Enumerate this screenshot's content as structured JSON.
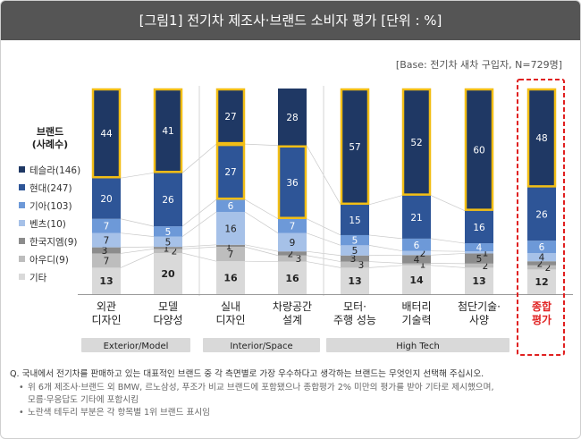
{
  "title": "[그림1] 전기차 제조사·브랜드 소비자 평가 [단위 : %]",
  "base_note": "[Base: 전기차 새차 구입자, N=729명]",
  "legend_title": [
    "브랜드",
    "(사례수)"
  ],
  "colors": {
    "tesla": "#1f3864",
    "hyundai": "#2e5597",
    "kia": "#6d99d8",
    "benz": "#a6c1e8",
    "gm": "#8c8c8c",
    "audi": "#bdbdbd",
    "other": "#d9d9d9",
    "highlight": "#f2be15",
    "overall_box": "#e02020"
  },
  "chart_data": {
    "type": "bar",
    "stacked": true,
    "unit": "%",
    "categories": [
      "외관\n디자인",
      "모델\n다양성",
      "실내\n디자인",
      "차량공간\n설계",
      "모터·\n주행 성능",
      "배터리\n기술력",
      "첨단기술·\n사양",
      "종합\n평가"
    ],
    "category_groups": [
      {
        "label": "Exterior/Model",
        "categories": [
          0,
          1
        ]
      },
      {
        "label": "Interior/Space",
        "categories": [
          2,
          3
        ]
      },
      {
        "label": "High Tech",
        "categories": [
          4,
          5,
          6
        ]
      }
    ],
    "series": [
      {
        "name": "테슬라(146)",
        "color_key": "tesla",
        "values": [
          44,
          41,
          27,
          28,
          57,
          52,
          60,
          48
        ]
      },
      {
        "name": "현대(247)",
        "color_key": "hyundai",
        "values": [
          20,
          26,
          27,
          36,
          15,
          21,
          16,
          26
        ]
      },
      {
        "name": "기아(103)",
        "color_key": "kia",
        "values": [
          7,
          5,
          6,
          7,
          5,
          6,
          4,
          6
        ]
      },
      {
        "name": "벤츠(10)",
        "color_key": "benz",
        "values": [
          7,
          5,
          16,
          9,
          5,
          2,
          1,
          4
        ]
      },
      {
        "name": "한국지엠(9)",
        "color_key": "gm",
        "values": [
          3,
          1,
          1,
          2,
          3,
          4,
          5,
          2
        ]
      },
      {
        "name": "아우디(9)",
        "color_key": "audi",
        "values": [
          7,
          2,
          7,
          3,
          3,
          1,
          2,
          2
        ]
      },
      {
        "name": "기타",
        "color_key": "other",
        "values": [
          13,
          20,
          16,
          16,
          13,
          14,
          13,
          12
        ]
      }
    ],
    "highlighted_segments": [
      {
        "category": 0,
        "series": 0
      },
      {
        "category": 1,
        "series": 0
      },
      {
        "category": 2,
        "series": 0
      },
      {
        "category": 2,
        "series": 1
      },
      {
        "category": 3,
        "series": 1
      },
      {
        "category": 4,
        "series": 0
      },
      {
        "category": 5,
        "series": 0
      },
      {
        "category": 6,
        "series": 0
      },
      {
        "category": 7,
        "series": 0
      }
    ],
    "emphasized_category": 7,
    "ylim": [
      0,
      100
    ],
    "grid": false
  },
  "footer": {
    "question": "Q. 국내에서 전기차를 판매하고 있는 대표적인 브랜드 중 각 측면별로 가장 우수하다고 생각하는 브랜드는 무엇인지 선택해 주십시오.",
    "bullets": [
      "위 6개 제조사·브랜드 외 BMW, 르노삼성, 푸조가 비교 브랜드에 포함됐으나 종합평가 2% 미만의 평가를 받아 기타로 제시했으며,",
      "모름·무응답도 기타에 포함시킴",
      "노란색 테두리 부분은 각 항목별 1위 브랜드 표시임"
    ]
  }
}
